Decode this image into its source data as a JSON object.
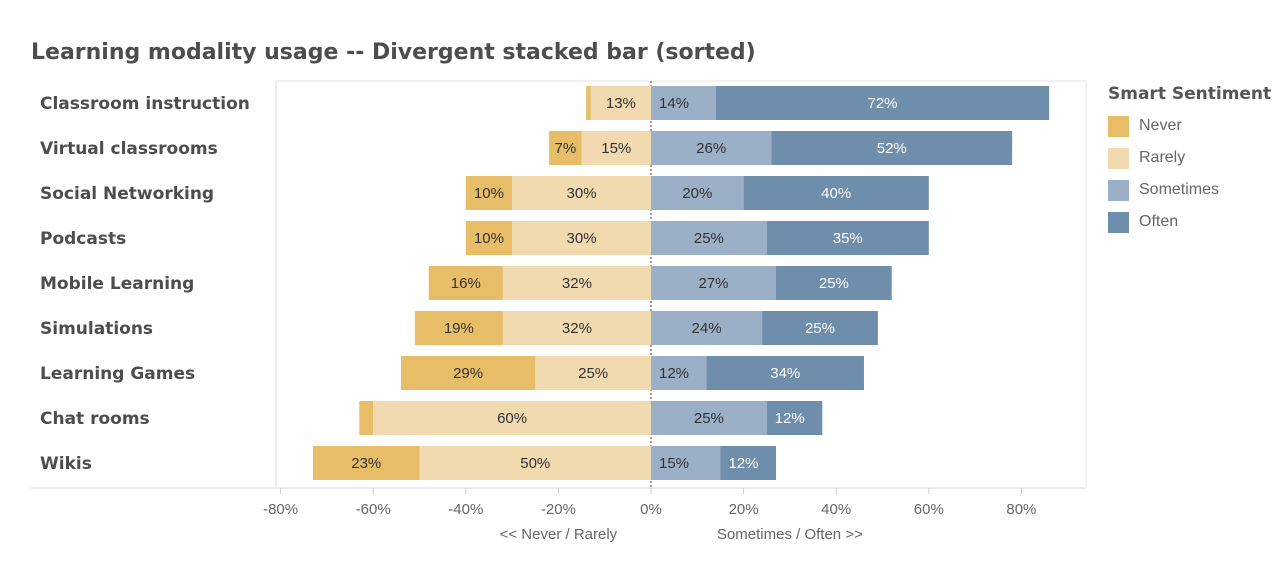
{
  "chart_data": {
    "type": "bar",
    "title": "Learning modality usage -- Divergent stacked bar (sorted)",
    "categories": [
      "Classroom instruction",
      "Virtual classrooms",
      "Social Networking",
      "Podcasts",
      "Mobile Learning",
      "Simulations",
      "Learning Games",
      "Chat rooms",
      "Wikis"
    ],
    "series": [
      {
        "name": "Never",
        "color": "#e8bd68",
        "direction": "negative",
        "values": [
          1,
          7,
          10,
          10,
          16,
          19,
          29,
          3,
          23
        ],
        "labels": [
          "",
          "7%",
          "10%",
          "10%",
          "16%",
          "19%",
          "29%",
          "",
          "23%"
        ]
      },
      {
        "name": "Rarely",
        "color": "#f1d9b0",
        "direction": "negative",
        "values": [
          13,
          15,
          30,
          30,
          32,
          32,
          25,
          60,
          50
        ],
        "labels": [
          "13%",
          "15%",
          "30%",
          "30%",
          "32%",
          "32%",
          "25%",
          "60%",
          "50%"
        ]
      },
      {
        "name": "Sometimes",
        "color": "#9bafc6",
        "direction": "positive",
        "values": [
          14,
          26,
          20,
          25,
          27,
          24,
          12,
          25,
          15
        ],
        "labels": [
          "14%",
          "26%",
          "20%",
          "25%",
          "27%",
          "24%",
          "12%",
          "25%",
          "15%"
        ]
      },
      {
        "name": "Often",
        "color": "#6f8eab",
        "direction": "positive",
        "values": [
          72,
          52,
          40,
          35,
          25,
          25,
          34,
          12,
          12
        ],
        "labels": [
          "72%",
          "52%",
          "40%",
          "35%",
          "25%",
          "25%",
          "34%",
          "12%",
          "12%"
        ]
      }
    ],
    "xlim": [
      -80,
      90
    ],
    "xticks": [
      -80,
      -60,
      -40,
      -20,
      0,
      20,
      40,
      60,
      80
    ],
    "xtick_labels": [
      "-80%",
      "-60%",
      "-40%",
      "-20%",
      "0%",
      "20%",
      "40%",
      "60%",
      "80%"
    ],
    "xlabel_left": "<< Never / Rarely",
    "xlabel_right": "Sometimes / Often >>",
    "grid": false,
    "legend": {
      "title": "Smart Sentiment",
      "position": "right"
    }
  }
}
